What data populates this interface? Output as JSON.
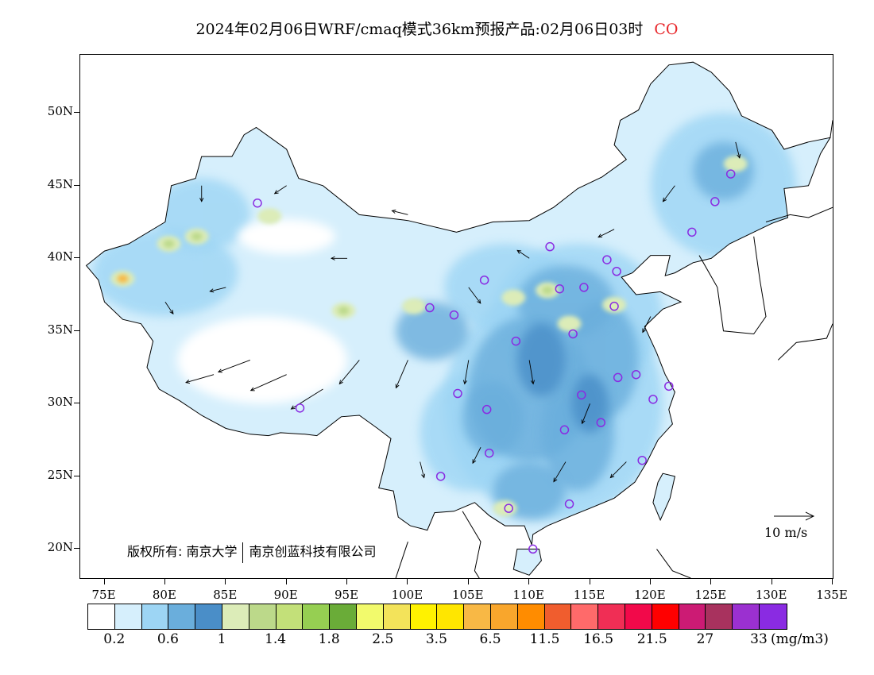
{
  "title": {
    "text": "2024年02月06日WRF/cmaq模式36km预报产品:02月06日03时",
    "species": "CO",
    "species_color": "#e8262a"
  },
  "map": {
    "lon_range": [
      73,
      135
    ],
    "lat_range": [
      18,
      54
    ],
    "lat_labels": [
      {
        "lat": 50,
        "label": "50N"
      },
      {
        "lat": 45,
        "label": "45N"
      },
      {
        "lat": 40,
        "label": "40N"
      },
      {
        "lat": 35,
        "label": "35N"
      },
      {
        "lat": 30,
        "label": "30N"
      },
      {
        "lat": 25,
        "label": "25N"
      },
      {
        "lat": 20,
        "label": "20N"
      }
    ],
    "lon_labels": [
      {
        "lon": 75,
        "label": "75E"
      },
      {
        "lon": 80,
        "label": "80E"
      },
      {
        "lon": 85,
        "label": "85E"
      },
      {
        "lon": 90,
        "label": "90E"
      },
      {
        "lon": 95,
        "label": "95E"
      },
      {
        "lon": 100,
        "label": "100E"
      },
      {
        "lon": 105,
        "label": "105E"
      },
      {
        "lon": 110,
        "label": "110E"
      },
      {
        "lon": 115,
        "label": "115E"
      },
      {
        "lon": 120,
        "label": "120E"
      },
      {
        "lon": 125,
        "label": "125E"
      },
      {
        "lon": 130,
        "label": "130E"
      },
      {
        "lon": 135,
        "label": "135E"
      }
    ],
    "cities": [
      [
        87.6,
        43.8
      ],
      [
        91.1,
        29.7
      ],
      [
        101.8,
        36.6
      ],
      [
        103.8,
        36.1
      ],
      [
        106.3,
        38.5
      ],
      [
        111.7,
        40.8
      ],
      [
        112.5,
        37.9
      ],
      [
        114.5,
        38.0
      ],
      [
        116.4,
        39.9
      ],
      [
        117.2,
        39.1
      ],
      [
        117.0,
        36.7
      ],
      [
        113.6,
        34.8
      ],
      [
        108.9,
        34.3
      ],
      [
        104.1,
        30.7
      ],
      [
        106.5,
        29.6
      ],
      [
        106.7,
        26.6
      ],
      [
        102.7,
        25.0
      ],
      [
        108.3,
        22.8
      ],
      [
        110.3,
        20.0
      ],
      [
        113.3,
        23.1
      ],
      [
        112.9,
        28.2
      ],
      [
        115.9,
        28.7
      ],
      [
        114.3,
        30.6
      ],
      [
        117.3,
        31.8
      ],
      [
        118.8,
        32.0
      ],
      [
        120.2,
        30.3
      ],
      [
        121.5,
        31.2
      ],
      [
        119.3,
        26.1
      ],
      [
        123.4,
        41.8
      ],
      [
        125.3,
        43.9
      ],
      [
        126.6,
        45.8
      ]
    ],
    "city_color": "#8a2be2",
    "ocean_label": "",
    "copyright": {
      "left": "版权所有: 南京大学",
      "right": "南京创蓝科技有限公司"
    },
    "wind_reference": {
      "label": "10 m/s",
      "speed_ms": 10
    }
  },
  "chart_data": {
    "type": "heatmap",
    "title": "2024年02月06日WRF/cmaq模式36km预报产品:02月06日03时 CO",
    "variable": "CO",
    "unit": "(mg/m3)",
    "colorbar": {
      "colors": [
        "#ffffff",
        "#d6effc",
        "#9dd5f4",
        "#6aaedc",
        "#4a8ec8",
        "#dcecb8",
        "#bcd98a",
        "#c3e079",
        "#96cf52",
        "#6aac38",
        "#f2fa6c",
        "#f3e35a",
        "#fff200",
        "#ffe600",
        "#f8b845",
        "#f9a62c",
        "#ff8c00",
        "#f05d2e",
        "#ff6a6a",
        "#f02e55",
        "#f2094a",
        "#ff0000",
        "#cc1b74",
        "#a8325e",
        "#9b30d0",
        "#8a2be2"
      ],
      "tick_labels": [
        "0.2",
        "0.6",
        "1",
        "1.4",
        "1.8",
        "2.5",
        "3.5",
        "6.5",
        "11.5",
        "16.5",
        "21.5",
        "27",
        "33"
      ],
      "tick_label_positions": [
        1,
        3,
        5,
        7,
        9,
        11,
        13,
        15,
        17,
        19,
        21,
        23,
        25
      ]
    },
    "hotspots": [
      {
        "lon": 76.5,
        "lat": 38.6,
        "value": 4.0
      },
      {
        "lon": 80.3,
        "lat": 41.0,
        "value": 1.6
      },
      {
        "lon": 82.6,
        "lat": 41.5,
        "value": 1.6
      },
      {
        "lon": 88.6,
        "lat": 42.9,
        "value": 1.5
      },
      {
        "lon": 94.7,
        "lat": 36.4,
        "value": 1.8
      },
      {
        "lon": 100.5,
        "lat": 36.7,
        "value": 1.4
      },
      {
        "lon": 108.7,
        "lat": 37.3,
        "value": 1.5
      },
      {
        "lon": 111.5,
        "lat": 37.8,
        "value": 1.6
      },
      {
        "lon": 113.3,
        "lat": 35.5,
        "value": 1.5
      },
      {
        "lon": 117.0,
        "lat": 36.8,
        "value": 1.5
      },
      {
        "lon": 127.0,
        "lat": 46.5,
        "value": 1.4
      },
      {
        "lon": 108.0,
        "lat": 22.8,
        "value": 1.4
      }
    ],
    "wind_field": [
      {
        "lon": 90,
        "lat": 32,
        "u": -9,
        "v": -4
      },
      {
        "lon": 87,
        "lat": 33,
        "u": -8,
        "v": -3
      },
      {
        "lon": 84,
        "lat": 32,
        "u": -7,
        "v": -2
      },
      {
        "lon": 93,
        "lat": 31,
        "u": -8,
        "v": -5
      },
      {
        "lon": 96,
        "lat": 33,
        "u": -5,
        "v": -6
      },
      {
        "lon": 100,
        "lat": 33,
        "u": -3,
        "v": -7
      },
      {
        "lon": 105,
        "lat": 33,
        "u": -1,
        "v": -6
      },
      {
        "lon": 110,
        "lat": 33,
        "u": 1,
        "v": -6
      },
      {
        "lon": 115,
        "lat": 30,
        "u": -2,
        "v": -5
      },
      {
        "lon": 113,
        "lat": 26,
        "u": -3,
        "v": -5
      },
      {
        "lon": 118,
        "lat": 26,
        "u": -4,
        "v": -4
      },
      {
        "lon": 106,
        "lat": 27,
        "u": -2,
        "v": -4
      },
      {
        "lon": 101,
        "lat": 26,
        "u": 1,
        "v": -4
      },
      {
        "lon": 105,
        "lat": 38,
        "u": 3,
        "v": -4
      },
      {
        "lon": 110,
        "lat": 40,
        "u": -3,
        "v": 2
      },
      {
        "lon": 117,
        "lat": 42,
        "u": -4,
        "v": -2
      },
      {
        "lon": 122,
        "lat": 45,
        "u": -3,
        "v": -4
      },
      {
        "lon": 127,
        "lat": 48,
        "u": 1,
        "v": -4
      },
      {
        "lon": 120,
        "lat": 36,
        "u": -2,
        "v": -4
      },
      {
        "lon": 95,
        "lat": 40,
        "u": -4,
        "v": 0
      },
      {
        "lon": 90,
        "lat": 45,
        "u": -3,
        "v": -2
      },
      {
        "lon": 83,
        "lat": 45,
        "u": 0,
        "v": -4
      },
      {
        "lon": 85,
        "lat": 38,
        "u": -4,
        "v": -1
      },
      {
        "lon": 80,
        "lat": 37,
        "u": 2,
        "v": -3
      },
      {
        "lon": 100,
        "lat": 43,
        "u": -4,
        "v": 1
      }
    ]
  }
}
